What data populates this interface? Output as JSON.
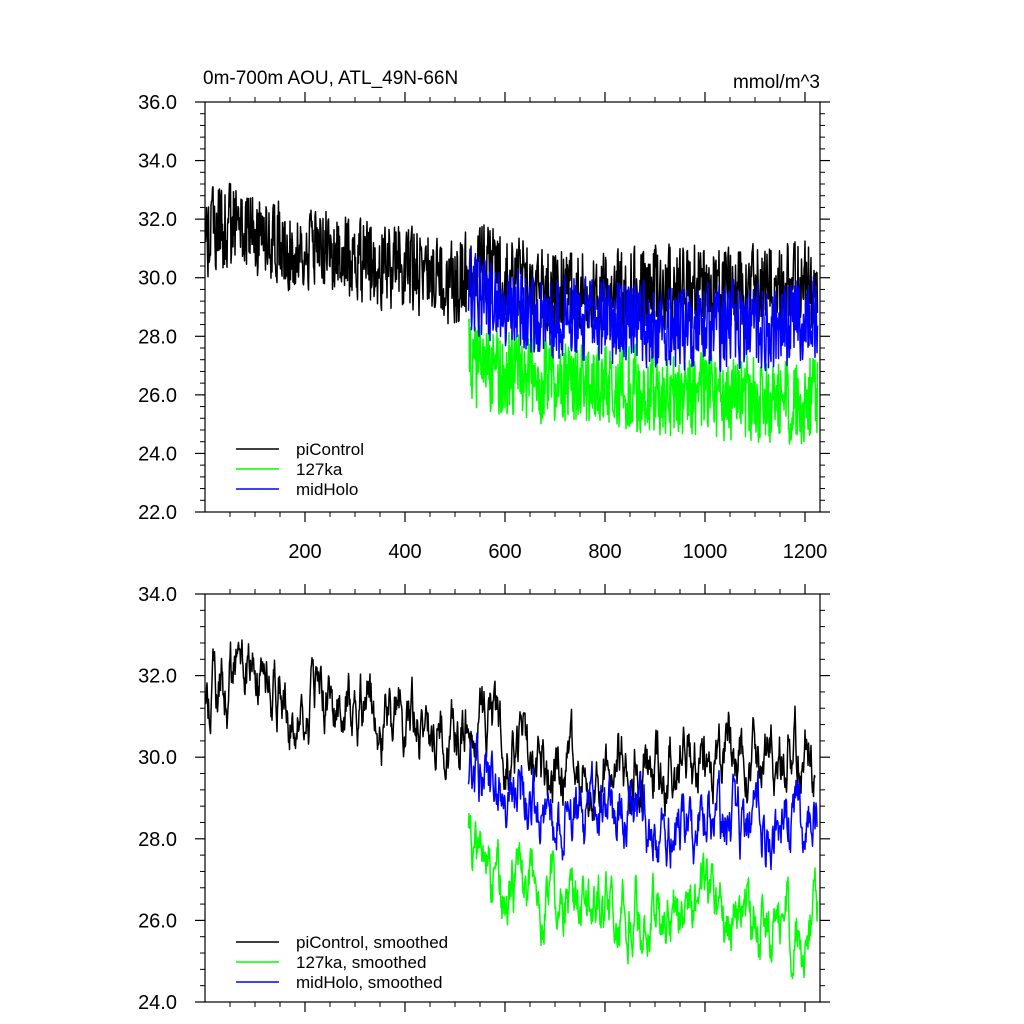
{
  "chart_data": [
    {
      "type": "line",
      "title": "0m-700m AOU, ATL_49N-66N",
      "units": "mmol/m^3",
      "xlim": [
        0,
        1230
      ],
      "ylim": [
        22,
        36
      ],
      "x_ticks": [
        200,
        400,
        600,
        800,
        1000,
        1200
      ],
      "y_ticks": [
        "22.0",
        "24.0",
        "26.0",
        "28.0",
        "30.0",
        "32.0",
        "34.0",
        "36.0"
      ],
      "legend_position": "bottom-left",
      "series": [
        {
          "name": "piControl",
          "color": "#000000",
          "x_start": 1,
          "x_end": 1225,
          "anchors": [
            [
              1,
              31.5
            ],
            [
              50,
              31.8
            ],
            [
              100,
              31.3
            ],
            [
              150,
              31.1
            ],
            [
              200,
              30.9
            ],
            [
              250,
              30.8
            ],
            [
              300,
              30.6
            ],
            [
              350,
              30.4
            ],
            [
              400,
              30.3
            ],
            [
              450,
              30.1
            ],
            [
              500,
              29.8
            ],
            [
              550,
              30.5
            ],
            [
              600,
              30.0
            ],
            [
              650,
              29.8
            ],
            [
              700,
              29.6
            ],
            [
              750,
              29.6
            ],
            [
              800,
              29.7
            ],
            [
              850,
              29.5
            ],
            [
              900,
              29.8
            ],
            [
              950,
              29.6
            ],
            [
              1000,
              29.7
            ],
            [
              1050,
              29.6
            ],
            [
              1100,
              29.8
            ],
            [
              1150,
              29.6
            ],
            [
              1200,
              29.9
            ],
            [
              1225,
              29.7
            ]
          ]
        },
        {
          "name": "127ka",
          "color": "#00ff00",
          "x_start": 527,
          "x_end": 1225,
          "anchors": [
            [
              527,
              27.2
            ],
            [
              560,
              26.8
            ],
            [
              600,
              26.7
            ],
            [
              650,
              26.6
            ],
            [
              700,
              26.5
            ],
            [
              750,
              26.4
            ],
            [
              800,
              26.3
            ],
            [
              850,
              26.2
            ],
            [
              900,
              26.0
            ],
            [
              950,
              25.9
            ],
            [
              1000,
              25.9
            ],
            [
              1050,
              25.9
            ],
            [
              1100,
              25.8
            ],
            [
              1150,
              25.7
            ],
            [
              1200,
              25.9
            ],
            [
              1225,
              26.1
            ]
          ]
        },
        {
          "name": "midHolo",
          "color": "#0000ff",
          "x_start": 527,
          "x_end": 1225,
          "anchors": [
            [
              527,
              29.6
            ],
            [
              560,
              29.3
            ],
            [
              600,
              28.9
            ],
            [
              650,
              28.7
            ],
            [
              700,
              28.6
            ],
            [
              750,
              28.6
            ],
            [
              800,
              28.5
            ],
            [
              850,
              28.4
            ],
            [
              900,
              28.4
            ],
            [
              950,
              28.3
            ],
            [
              1000,
              28.3
            ],
            [
              1050,
              28.4
            ],
            [
              1100,
              28.3
            ],
            [
              1150,
              28.3
            ],
            [
              1200,
              28.6
            ],
            [
              1225,
              28.8
            ]
          ]
        }
      ]
    },
    {
      "type": "line",
      "title": "",
      "xlim": [
        0,
        1230
      ],
      "ylim": [
        24,
        34
      ],
      "y_ticks": [
        "24.0",
        "26.0",
        "28.0",
        "30.0",
        "32.0",
        "34.0"
      ],
      "legend_position": "bottom-left",
      "series": [
        {
          "name": "piControl, smoothed",
          "color": "#000000",
          "x_start": 1,
          "x_end": 1220,
          "anchors": [
            [
              1,
              31.4
            ],
            [
              30,
              31.6
            ],
            [
              60,
              32.0
            ],
            [
              100,
              31.8
            ],
            [
              150,
              31.5
            ],
            [
              200,
              31.3
            ],
            [
              250,
              31.2
            ],
            [
              300,
              31.2
            ],
            [
              350,
              31.0
            ],
            [
              400,
              30.8
            ],
            [
              450,
              30.4
            ],
            [
              500,
              30.6
            ],
            [
              550,
              31.0
            ],
            [
              600,
              30.4
            ],
            [
              650,
              30.0
            ],
            [
              700,
              30.0
            ],
            [
              750,
              29.9
            ],
            [
              800,
              29.9
            ],
            [
              850,
              29.9
            ],
            [
              900,
              29.9
            ],
            [
              950,
              29.9
            ],
            [
              1000,
              29.8
            ],
            [
              1050,
              30.0
            ],
            [
              1100,
              30.0
            ],
            [
              1150,
              30.0
            ],
            [
              1200,
              30.3
            ],
            [
              1220,
              30.1
            ]
          ]
        },
        {
          "name": "127ka, smoothed",
          "color": "#00ff00",
          "x_start": 527,
          "x_end": 1225,
          "anchors": [
            [
              527,
              27.8
            ],
            [
              560,
              27.0
            ],
            [
              600,
              26.8
            ],
            [
              650,
              26.8
            ],
            [
              700,
              26.5
            ],
            [
              750,
              26.5
            ],
            [
              800,
              26.3
            ],
            [
              850,
              26.2
            ],
            [
              900,
              26.1
            ],
            [
              950,
              26.0
            ],
            [
              1000,
              26.1
            ],
            [
              1050,
              26.0
            ],
            [
              1100,
              25.9
            ],
            [
              1150,
              25.8
            ],
            [
              1200,
              26.0
            ],
            [
              1225,
              26.3
            ]
          ]
        },
        {
          "name": "midHolo, smoothed",
          "color": "#0000ff",
          "x_start": 527,
          "x_end": 1225,
          "anchors": [
            [
              527,
              29.6
            ],
            [
              560,
              29.3
            ],
            [
              600,
              29.0
            ],
            [
              650,
              28.8
            ],
            [
              700,
              28.6
            ],
            [
              750,
              28.6
            ],
            [
              800,
              28.5
            ],
            [
              850,
              28.4
            ],
            [
              900,
              28.4
            ],
            [
              950,
              28.3
            ],
            [
              1000,
              28.3
            ],
            [
              1050,
              28.3
            ],
            [
              1100,
              28.3
            ],
            [
              1150,
              28.2
            ],
            [
              1200,
              28.6
            ],
            [
              1225,
              28.9
            ]
          ]
        }
      ]
    }
  ]
}
